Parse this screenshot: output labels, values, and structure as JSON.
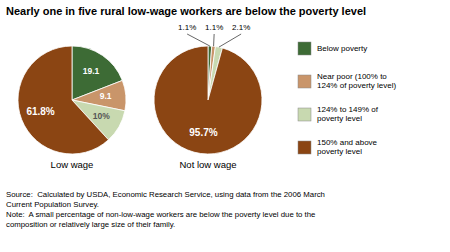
{
  "title": "Nearly one in five rural low-wage workers are below the poverty level",
  "annotations": [
    "Source:  Calculated by USDA, Economic Research Service, using data from the 2006 March\nCurrent Population Survey.\nNote:  A small percentage of non-low-wage workers are below the poverty level due to the\ncomposition or relatively large size of their family."
  ],
  "chart_data": [
    {
      "type": "pie",
      "title": "Low wage",
      "categories": [
        "Below poverty",
        "Near poor (100% to\n124% of poverty level)",
        "124% to 149% of\npoverty level",
        "150% and above\npoverty level"
      ],
      "values": [
        19.1,
        9.1,
        10.0,
        61.8
      ],
      "value_labels": [
        "19.1",
        "9.1",
        "10%",
        "61.8%"
      ],
      "colors": [
        "#3d6b35",
        "#c9956a",
        "#c8d9b0",
        "#8b4513"
      ],
      "data_labels": true,
      "legend": "right"
    },
    {
      "type": "pie",
      "title": "Not low wage",
      "categories": [
        "Below poverty",
        "Near poor (100% to\n124% of poverty level)",
        "124% to 149% of\npoverty level",
        "150% and above\npoverty level"
      ],
      "values": [
        1.1,
        1.1,
        2.1,
        95.7
      ],
      "value_labels": [
        "1.1%",
        "1.1%",
        "2.1%",
        "95.7%"
      ],
      "colors": [
        "#3d6b35",
        "#c9956a",
        "#c8d9b0",
        "#8b4513"
      ],
      "data_labels": true
    }
  ]
}
